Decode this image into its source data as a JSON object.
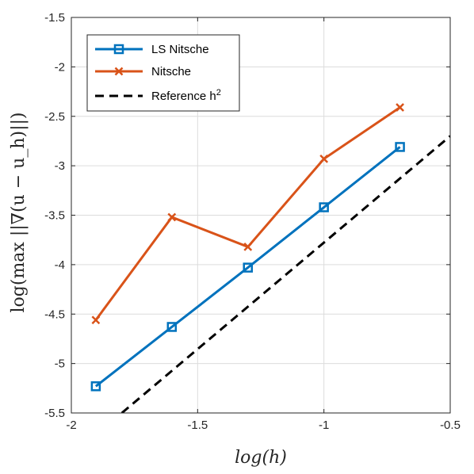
{
  "chart_data": {
    "type": "line",
    "title": "",
    "xlabel": "log(h)",
    "ylabel": "log(max ||∇(u − u_h)||)",
    "xlim": [
      -2,
      -0.5
    ],
    "ylim": [
      -5.5,
      -1.5
    ],
    "xticks": [
      -2,
      -1.5,
      -1,
      -0.5
    ],
    "yticks": [
      -5.5,
      -5,
      -4.5,
      -4,
      -3.5,
      -3,
      -2.5,
      -2,
      -1.5
    ],
    "xtick_labels": [
      "-2",
      "-1.5",
      "-1",
      "-0.5"
    ],
    "ytick_labels": [
      "-5.5",
      "-5",
      "-4.5",
      "-4",
      "-3.5",
      "-3",
      "-2.5",
      "-2",
      "-1.5"
    ],
    "grid": true,
    "legend_position": "top-left",
    "series": [
      {
        "name": "LS Nitsche",
        "color": "#0072BD",
        "marker": "square",
        "line": "solid",
        "x": [
          -1.9031,
          -1.6021,
          -1.301,
          -1.0,
          -0.699
        ],
        "y": [
          -5.23,
          -4.63,
          -4.03,
          -3.42,
          -2.81
        ]
      },
      {
        "name": "Nitsche",
        "color": "#D95319",
        "marker": "x",
        "line": "solid",
        "x": [
          -1.9031,
          -1.6021,
          -1.301,
          -1.0,
          -0.699
        ],
        "y": [
          -4.56,
          -3.52,
          -3.82,
          -2.93,
          -2.41
        ]
      },
      {
        "name": "Reference h",
        "name_superscript": "2",
        "color": "#000000",
        "marker": "none",
        "line": "dashed",
        "x": [
          -1.8,
          -0.5
        ],
        "y": [
          -5.5,
          -2.7
        ]
      }
    ]
  }
}
